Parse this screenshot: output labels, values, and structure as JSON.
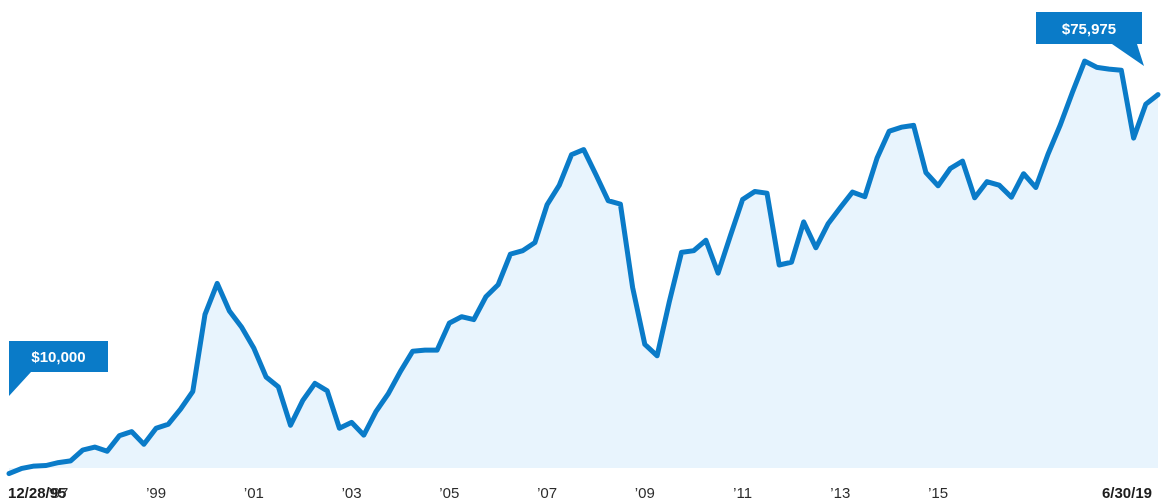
{
  "chart_data": {
    "type": "area",
    "title": "",
    "xlabel": "",
    "ylabel": "",
    "x_range": [
      "12/28/95",
      "6/30/19"
    ],
    "ylim": [
      0,
      90000
    ],
    "grid": false,
    "colors": {
      "line": "#0A7BC8",
      "fill": "#E8F4FD",
      "callout": "#0A7BC8",
      "callout_text": "#FFFFFF"
    },
    "tick_labels": [
      {
        "label": "12/28/95",
        "x": 1995.99,
        "bold": true
      },
      {
        "label": "'97",
        "x": 1997.0
      },
      {
        "label": "'99",
        "x": 1999.0
      },
      {
        "label": "'01",
        "x": 2001.0
      },
      {
        "label": "'03",
        "x": 2003.0
      },
      {
        "label": "'05",
        "x": 2005.0
      },
      {
        "label": "'07",
        "x": 2007.0
      },
      {
        "label": "'09",
        "x": 2009.0
      },
      {
        "label": "'11",
        "x": 2011.0
      },
      {
        "label": "'13",
        "x": 2013.0
      },
      {
        "label": "'15",
        "x": 2015.0
      },
      {
        "label": "6/30/19",
        "x": 2019.5,
        "bold": true
      }
    ],
    "annotations": {
      "start": {
        "label": "$10,000",
        "value": 10000
      },
      "end": {
        "label": "$75,975",
        "value": 75975
      }
    },
    "series": [
      {
        "values": [
          [
            1995.99,
            10000
          ],
          [
            1996.25,
            10900
          ],
          [
            1996.5,
            11300
          ],
          [
            1996.75,
            11400
          ],
          [
            1997.0,
            11900
          ],
          [
            1997.25,
            12200
          ],
          [
            1997.5,
            14100
          ],
          [
            1997.75,
            14600
          ],
          [
            1998.0,
            13900
          ],
          [
            1998.25,
            16600
          ],
          [
            1998.5,
            17300
          ],
          [
            1998.75,
            15100
          ],
          [
            1999.0,
            17900
          ],
          [
            1999.25,
            18600
          ],
          [
            1999.5,
            21200
          ],
          [
            1999.75,
            24300
          ],
          [
            2000.0,
            37700
          ],
          [
            2000.25,
            43100
          ],
          [
            2000.5,
            38300
          ],
          [
            2000.75,
            35500
          ],
          [
            2001.0,
            31800
          ],
          [
            2001.25,
            26800
          ],
          [
            2001.5,
            25100
          ],
          [
            2001.75,
            18400
          ],
          [
            2002.0,
            22700
          ],
          [
            2002.25,
            25700
          ],
          [
            2002.5,
            24400
          ],
          [
            2002.75,
            17900
          ],
          [
            2003.0,
            18900
          ],
          [
            2003.25,
            16700
          ],
          [
            2003.5,
            20800
          ],
          [
            2003.75,
            23900
          ],
          [
            2004.0,
            27800
          ],
          [
            2004.25,
            31300
          ],
          [
            2004.5,
            31500
          ],
          [
            2004.75,
            31500
          ],
          [
            2005.0,
            36200
          ],
          [
            2005.25,
            37300
          ],
          [
            2005.5,
            36800
          ],
          [
            2005.75,
            40800
          ],
          [
            2006.0,
            42900
          ],
          [
            2006.25,
            48200
          ],
          [
            2006.5,
            48800
          ],
          [
            2006.75,
            50200
          ],
          [
            2007.0,
            56800
          ],
          [
            2007.25,
            60200
          ],
          [
            2007.5,
            65500
          ],
          [
            2007.75,
            66400
          ],
          [
            2008.0,
            62000
          ],
          [
            2008.25,
            57500
          ],
          [
            2008.5,
            56900
          ],
          [
            2008.75,
            42400
          ],
          [
            2009.0,
            32500
          ],
          [
            2009.25,
            30500
          ],
          [
            2009.5,
            39900
          ],
          [
            2009.75,
            48500
          ],
          [
            2010.0,
            48800
          ],
          [
            2010.25,
            50600
          ],
          [
            2010.5,
            44900
          ],
          [
            2010.75,
            51400
          ],
          [
            2011.0,
            57700
          ],
          [
            2011.25,
            59100
          ],
          [
            2011.5,
            58800
          ],
          [
            2011.75,
            46300
          ],
          [
            2012.0,
            46800
          ],
          [
            2012.25,
            53800
          ],
          [
            2012.5,
            49300
          ],
          [
            2012.75,
            53500
          ],
          [
            2013.0,
            56300
          ],
          [
            2013.25,
            59000
          ],
          [
            2013.5,
            58200
          ],
          [
            2013.75,
            64900
          ],
          [
            2014.0,
            69600
          ],
          [
            2014.25,
            70300
          ],
          [
            2014.5,
            70600
          ],
          [
            2014.75,
            62400
          ],
          [
            2015.0,
            60100
          ],
          [
            2015.25,
            63100
          ],
          [
            2015.5,
            64400
          ],
          [
            2015.75,
            58000
          ],
          [
            2016.0,
            60800
          ],
          [
            2016.25,
            60200
          ],
          [
            2016.5,
            58100
          ],
          [
            2016.75,
            62200
          ],
          [
            2017.0,
            59800
          ],
          [
            2017.25,
            65600
          ],
          [
            2017.5,
            70700
          ],
          [
            2017.75,
            76400
          ],
          [
            2018.0,
            81800
          ],
          [
            2018.25,
            80700
          ],
          [
            2018.5,
            80400
          ],
          [
            2018.75,
            80200
          ],
          [
            2019.0,
            68400
          ],
          [
            2019.25,
            74300
          ],
          [
            2019.5,
            75975
          ]
        ]
      }
    ]
  }
}
